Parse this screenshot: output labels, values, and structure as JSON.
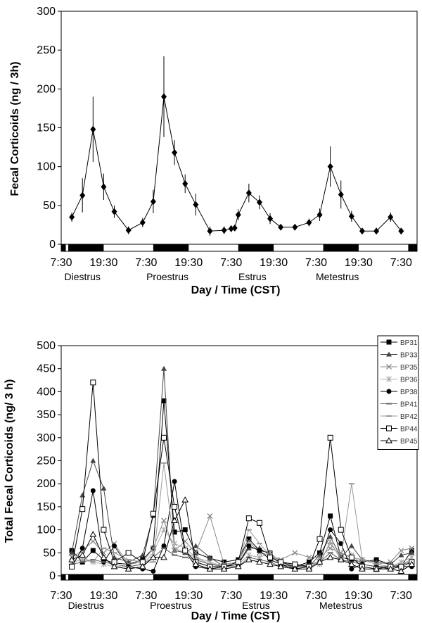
{
  "chart_data": [
    {
      "type": "line",
      "title": "",
      "xlabel": "Day / Time (CST)",
      "ylabel": "Fecal Corticoids (ng / 3h)",
      "ylim": [
        0,
        300
      ],
      "yticks": [
        "0",
        "50",
        "100",
        "150",
        "200",
        "250",
        "300"
      ],
      "xticks": [
        {
          "hour": 7.5,
          "label": "7:30"
        },
        {
          "hour": 19.5,
          "label": "19:30"
        },
        {
          "hour": 31.5,
          "label": "7:30"
        },
        {
          "hour": 43.5,
          "label": "19:30"
        },
        {
          "hour": 55.5,
          "label": "7:30"
        },
        {
          "hour": 67.5,
          "label": "19:30"
        },
        {
          "hour": 79.5,
          "label": "7:30"
        },
        {
          "hour": 91.5,
          "label": "19:30"
        },
        {
          "hour": 103.5,
          "label": "7:30"
        }
      ],
      "xlim": [
        7.5,
        108
      ],
      "phases": [
        {
          "hour": 13.5,
          "label": "Diestrus"
        },
        {
          "hour": 37.5,
          "label": "Proestrus"
        },
        {
          "hour": 61.5,
          "label": "Estrus"
        },
        {
          "hour": 85.5,
          "label": "Metestrus"
        }
      ],
      "dark_periods": [
        [
          7.5,
          8.8
        ],
        [
          9.5,
          19.5
        ],
        [
          33.5,
          43.5
        ],
        [
          57.5,
          67.5
        ],
        [
          81.5,
          91.5
        ],
        [
          105.5,
          108
        ]
      ],
      "series": [
        {
          "marker": "diamond",
          "color": "#000000",
          "x": [
            10.5,
            13.5,
            16.5,
            19.5,
            22.5,
            26.5,
            30.5,
            33.5,
            36.5,
            39.5,
            42.5,
            45.5,
            49.5,
            53.5,
            55.5,
            56.5,
            57.5,
            60.5,
            63.5,
            66.5,
            69.5,
            73.5,
            77.5,
            80.5,
            83.5,
            86.5,
            89.5,
            92.5,
            96.5,
            100.5,
            103.5
          ],
          "y": [
            35,
            63,
            148,
            74,
            42,
            18,
            28,
            55,
            190,
            118,
            78,
            51,
            17,
            18,
            20,
            21,
            38,
            66,
            54,
            33,
            22,
            22,
            28,
            38,
            100,
            64,
            36,
            17,
            17,
            35,
            17
          ],
          "err": [
            6,
            22,
            42,
            17,
            8,
            5,
            6,
            15,
            52,
            16,
            12,
            14,
            6,
            5,
            4,
            4,
            7,
            12,
            9,
            7,
            3,
            4,
            5,
            8,
            26,
            18,
            7,
            3,
            4,
            6,
            4
          ]
        }
      ]
    },
    {
      "type": "line",
      "title": "",
      "xlabel": "Day / Time (CST)",
      "ylabel": "Total Fecal Corticoids (ng/ 3 h)",
      "ylim": [
        0,
        500
      ],
      "yticks": [
        "0",
        "50",
        "100",
        "150",
        "200",
        "250",
        "300",
        "350",
        "400",
        "450",
        "500"
      ],
      "xticks": [
        {
          "hour": 7.5,
          "label": "7:30"
        },
        {
          "hour": 19.5,
          "label": "19:30"
        },
        {
          "hour": 31.5,
          "label": "7:30"
        },
        {
          "hour": 43.5,
          "label": "19:30"
        },
        {
          "hour": 55.5,
          "label": "7:30"
        },
        {
          "hour": 67.5,
          "label": "19:30"
        },
        {
          "hour": 79.5,
          "label": "7:30"
        },
        {
          "hour": 91.5,
          "label": "19:30"
        },
        {
          "hour": 103.5,
          "label": "7:30"
        }
      ],
      "xlim": [
        7.5,
        108
      ],
      "phases": [
        {
          "hour": 14.5,
          "label": "Diestrus"
        },
        {
          "hour": 38.5,
          "label": "Proestrus"
        },
        {
          "hour": 62.5,
          "label": "Estrus"
        },
        {
          "hour": 86.5,
          "label": "Metestrus"
        }
      ],
      "dark_periods": [
        [
          7.5,
          8.8
        ],
        [
          9.5,
          19.5
        ],
        [
          33.5,
          43.5
        ],
        [
          57.5,
          67.5
        ],
        [
          81.5,
          91.5
        ],
        [
          105.5,
          108
        ]
      ],
      "legend": "right",
      "x": [
        10.5,
        13.5,
        16.5,
        19.5,
        22.5,
        26.5,
        30.5,
        33.5,
        36.5,
        39.5,
        42.5,
        45.5,
        49.5,
        53.5,
        57.5,
        60.5,
        63.5,
        66.5,
        69.5,
        73.5,
        77.5,
        80.5,
        83.5,
        86.5,
        89.5,
        92.5,
        96.5,
        100.5,
        103.5,
        106.5
      ],
      "series": [
        {
          "name": "BP31",
          "marker": "square-filled",
          "color": "#000000",
          "y": [
            55,
            30,
            55,
            35,
            28,
            25,
            35,
            60,
            380,
            95,
            100,
            50,
            38,
            30,
            35,
            80,
            55,
            50,
            30,
            20,
            30,
            50,
            130,
            40,
            35,
            30,
            35,
            25,
            20,
            55
          ]
        },
        {
          "name": "BP33",
          "marker": "triangle-filled",
          "color": "#444444",
          "y": [
            50,
            175,
            250,
            190,
            40,
            30,
            45,
            130,
            450,
            55,
            50,
            65,
            40,
            20,
            25,
            60,
            60,
            45,
            25,
            20,
            20,
            45,
            85,
            40,
            65,
            35,
            30,
            25,
            45,
            50
          ]
        },
        {
          "name": "BP35",
          "marker": "x",
          "color": "#888888",
          "y": [
            40,
            55,
            75,
            50,
            70,
            25,
            30,
            60,
            120,
            55,
            75,
            50,
            130,
            25,
            30,
            75,
            50,
            45,
            35,
            50,
            40,
            40,
            60,
            50,
            40,
            35,
            25,
            30,
            55,
            60
          ]
        },
        {
          "name": "BP36",
          "marker": "star",
          "color": "#aaaaaa",
          "y": [
            30,
            35,
            30,
            25,
            20,
            20,
            25,
            50,
            100,
            70,
            60,
            40,
            30,
            20,
            25,
            45,
            40,
            50,
            30,
            25,
            20,
            25,
            75,
            35,
            45,
            25,
            20,
            20,
            30,
            40
          ]
        },
        {
          "name": "BP38",
          "marker": "circle-filled",
          "color": "#000000",
          "y": [
            20,
            60,
            185,
            30,
            65,
            20,
            15,
            10,
            65,
            205,
            55,
            20,
            15,
            20,
            25,
            65,
            55,
            35,
            25,
            15,
            20,
            30,
            100,
            70,
            15,
            25,
            20,
            15,
            20,
            20
          ]
        },
        {
          "name": "BP41",
          "marker": "dash",
          "color": "#666666",
          "y": [
            25,
            30,
            35,
            30,
            25,
            20,
            25,
            40,
            60,
            45,
            40,
            35,
            25,
            20,
            20,
            40,
            35,
            30,
            20,
            20,
            25,
            30,
            50,
            35,
            30,
            25,
            20,
            20,
            25,
            30
          ]
        },
        {
          "name": "BP42",
          "marker": "dash-grey",
          "color": "#999999",
          "y": [
            45,
            40,
            30,
            60,
            50,
            35,
            30,
            30,
            245,
            60,
            50,
            40,
            25,
            25,
            30,
            100,
            70,
            45,
            30,
            25,
            20,
            30,
            70,
            40,
            200,
            35,
            25,
            20,
            25,
            35
          ]
        },
        {
          "name": "BP44",
          "marker": "square-open",
          "color": "#000000",
          "y": [
            20,
            145,
            420,
            100,
            30,
            50,
            30,
            135,
            300,
            150,
            55,
            30,
            20,
            20,
            30,
            125,
            115,
            40,
            30,
            25,
            20,
            80,
            300,
            100,
            40,
            20,
            15,
            20,
            20,
            30
          ]
        },
        {
          "name": "BP45",
          "marker": "triangle-open",
          "color": "#000000",
          "y": [
            35,
            45,
            90,
            40,
            20,
            15,
            20,
            40,
            40,
            120,
            165,
            25,
            15,
            15,
            20,
            35,
            30,
            25,
            20,
            15,
            15,
            30,
            40,
            35,
            25,
            15,
            15,
            15,
            10,
            25
          ]
        }
      ]
    }
  ]
}
